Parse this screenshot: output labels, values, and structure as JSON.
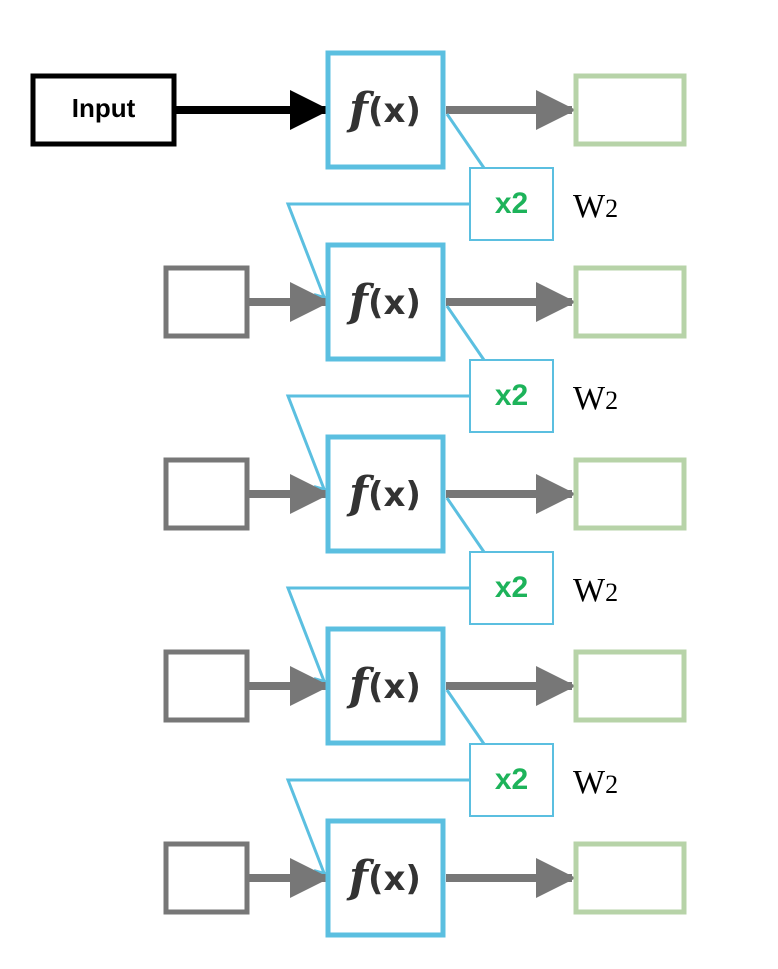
{
  "input_label": "Input",
  "function_label": "f(x)",
  "function_symbol": "f",
  "function_arg": "(x)",
  "multiplier_label": "x2",
  "weight_label": "W",
  "weight_subscript": "2",
  "stage_count": 5,
  "colors": {
    "function_box": "#5bbfe0",
    "multiplier_box": "#5bbfe0",
    "feedback_line": "#5bbfe0",
    "input_box": "#000000",
    "input_arrow": "#000000",
    "empty_input_box": "#777777",
    "arrow": "#777777",
    "output_box": "#b7d3a8",
    "multiplier_text": "#1db35a",
    "function_text": "#333333"
  }
}
